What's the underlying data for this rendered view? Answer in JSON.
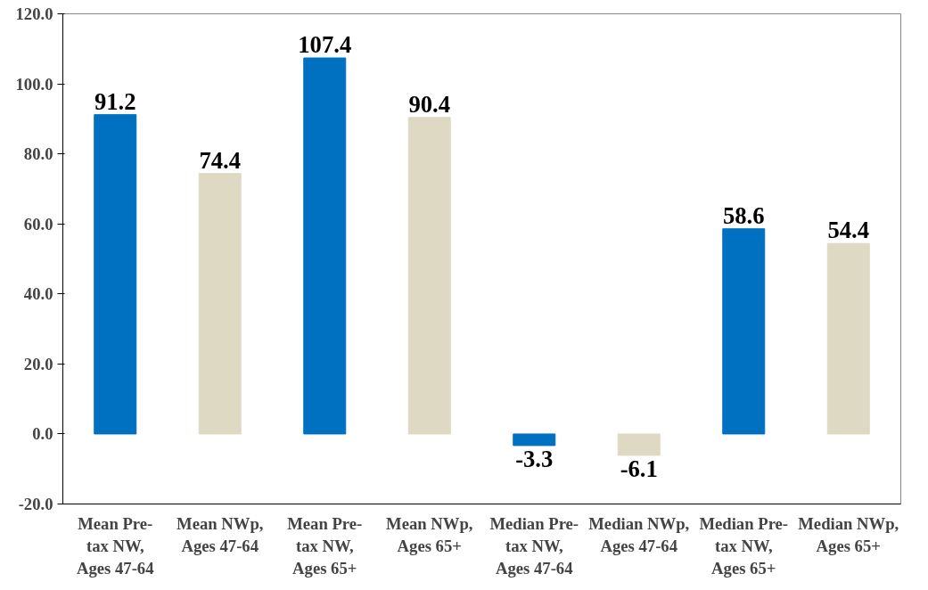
{
  "chart_data": {
    "type": "bar",
    "categories": [
      "Mean Pre-tax NW, Ages 47-64",
      "Mean NWp, Ages 47-64",
      "Mean Pre-tax NW, Ages 65+",
      "Mean NWp, Ages 65+",
      "Median Pre-tax NW, Ages 47-64",
      "Median NWp, Ages 47-64",
      "Median Pre-tax NW, Ages 65+",
      "Median NWp, Ages 65+"
    ],
    "values": [
      91.2,
      74.4,
      107.4,
      90.4,
      -3.3,
      -6.1,
      58.6,
      54.4
    ],
    "colors": [
      "#0070c0",
      "#ddd9c3",
      "#0070c0",
      "#ddd9c3",
      "#0070c0",
      "#ddd9c3",
      "#0070c0",
      "#ddd9c3"
    ],
    "ylim": [
      -20,
      120
    ],
    "yticks": [
      {
        "value": -20,
        "label": "-20.0"
      },
      {
        "value": 0,
        "label": "0.0"
      },
      {
        "value": 20,
        "label": "20.0"
      },
      {
        "value": 40,
        "label": "40.0"
      },
      {
        "value": 60,
        "label": "60.0"
      },
      {
        "value": 80,
        "label": "80.0"
      },
      {
        "value": 100,
        "label": "100.0"
      },
      {
        "value": 120,
        "label": "120.0"
      }
    ],
    "data_labels": true,
    "grid": false
  }
}
